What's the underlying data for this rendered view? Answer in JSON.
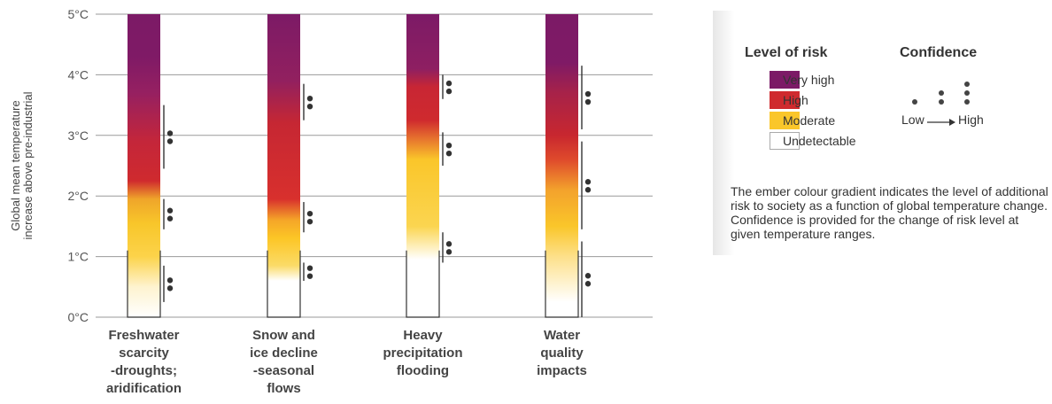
{
  "chart_data": {
    "type": "bar",
    "ylabel_lines": [
      "Global mean temperature",
      "increase above pre-industrial"
    ],
    "y_ticks": [
      "0°C",
      "1°C",
      "2°C",
      "3°C",
      "4°C",
      "5°C"
    ],
    "ylim": [
      0,
      5
    ],
    "grid": true,
    "categories": [
      {
        "label_lines": [
          "Freshwater",
          "scarcity",
          "-droughts;",
          "aridification"
        ],
        "gradient": [
          {
            "t": 0.0,
            "color": "#ffffff"
          },
          {
            "t": 0.5,
            "color": "#fef3cf"
          },
          {
            "t": 1.0,
            "color": "#fcd34a"
          },
          {
            "t": 1.55,
            "color": "#f8c62a"
          },
          {
            "t": 1.95,
            "color": "#efa52a"
          },
          {
            "t": 2.25,
            "color": "#cf2a2e"
          },
          {
            "t": 2.9,
            "color": "#c4263a"
          },
          {
            "t": 3.7,
            "color": "#962061"
          },
          {
            "t": 4.3,
            "color": "#7f1a66"
          },
          {
            "t": 5.0,
            "color": "#7c1a66"
          }
        ],
        "undetectable_top": 1.1,
        "confidence": [
          {
            "range": [
              0.25,
              0.85
            ],
            "dots": 2
          },
          {
            "range": [
              1.45,
              1.95
            ],
            "dots": 2
          },
          {
            "range": [
              2.45,
              3.5
            ],
            "dots": 2
          }
        ]
      },
      {
        "label_lines": [
          "Snow and",
          "ice decline",
          "-seasonal",
          "flows"
        ],
        "gradient": [
          {
            "t": 0.0,
            "color": "#ffffff"
          },
          {
            "t": 0.6,
            "color": "#ffffff"
          },
          {
            "t": 0.85,
            "color": "#fbdb68"
          },
          {
            "t": 1.3,
            "color": "#fcc626"
          },
          {
            "t": 1.6,
            "color": "#f5a628"
          },
          {
            "t": 1.95,
            "color": "#d8302d"
          },
          {
            "t": 3.2,
            "color": "#c62733"
          },
          {
            "t": 3.9,
            "color": "#92205f"
          },
          {
            "t": 5.0,
            "color": "#7c1a66"
          }
        ],
        "undetectable_top": 1.1,
        "confidence": [
          {
            "range": [
              0.6,
              0.9
            ],
            "dots": 2
          },
          {
            "range": [
              1.4,
              1.9
            ],
            "dots": 2
          },
          {
            "range": [
              3.25,
              3.85
            ],
            "dots": 2
          }
        ]
      },
      {
        "label_lines": [
          "Heavy",
          "precipitation",
          "flooding"
        ],
        "gradient": [
          {
            "t": 0.0,
            "color": "#ffffff"
          },
          {
            "t": 0.95,
            "color": "#ffffff"
          },
          {
            "t": 1.5,
            "color": "#fbd550"
          },
          {
            "t": 2.6,
            "color": "#fac62a"
          },
          {
            "t": 2.95,
            "color": "#e6722e"
          },
          {
            "t": 3.25,
            "color": "#cf2a2e"
          },
          {
            "t": 3.8,
            "color": "#c82634"
          },
          {
            "t": 4.1,
            "color": "#8e1f62"
          },
          {
            "t": 5.0,
            "color": "#7c1a66"
          }
        ],
        "undetectable_top": 1.1,
        "confidence": [
          {
            "range": [
              0.9,
              1.4
            ],
            "dots": 2
          },
          {
            "range": [
              2.5,
              3.05
            ],
            "dots": 2
          },
          {
            "range": [
              3.6,
              4.0
            ],
            "dots": 2
          }
        ]
      },
      {
        "label_lines": [
          "Water",
          "quality",
          "impacts"
        ],
        "gradient": [
          {
            "t": 0.0,
            "color": "#ffffff"
          },
          {
            "t": 0.25,
            "color": "#ffffff"
          },
          {
            "t": 1.0,
            "color": "#fde08a"
          },
          {
            "t": 1.5,
            "color": "#fac62a"
          },
          {
            "t": 2.1,
            "color": "#f3a22c"
          },
          {
            "t": 2.6,
            "color": "#df4a2c"
          },
          {
            "t": 3.0,
            "color": "#c8272f"
          },
          {
            "t": 3.7,
            "color": "#a72249"
          },
          {
            "t": 4.2,
            "color": "#7f1a66"
          },
          {
            "t": 5.0,
            "color": "#7c1a66"
          }
        ],
        "undetectable_top": 1.1,
        "confidence": [
          {
            "range": [
              0.0,
              1.25
            ],
            "dots": 2
          },
          {
            "range": [
              1.45,
              2.9
            ],
            "dots": 2
          },
          {
            "range": [
              3.1,
              4.15
            ],
            "dots": 2
          }
        ]
      }
    ]
  },
  "legend": {
    "risk_title": "Level of risk",
    "risk_levels": [
      {
        "label": "Very high",
        "color": "#7c1a66"
      },
      {
        "label": "High",
        "color": "#cf2a2e"
      },
      {
        "label": "Moderate",
        "color": "#fac62a"
      },
      {
        "label": "Undetectable",
        "color": "#ffffff"
      }
    ],
    "confidence_title": "Confidence",
    "confidence_low": "Low",
    "confidence_high": "High",
    "note": "The ember colour gradient indicates the level of additional risk to society as a function of global temperature change. Confidence is provided for the change of risk level at given temperature ranges."
  }
}
